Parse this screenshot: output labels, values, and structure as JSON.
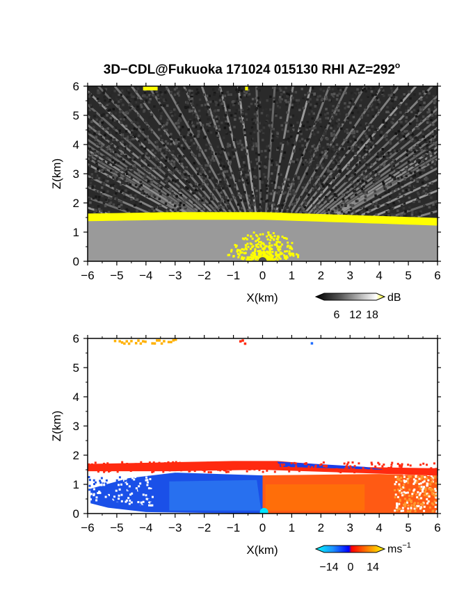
{
  "title": "3D−CDL@Fukuoka 171024 015130 RHI AZ=292",
  "title_sup": "o",
  "chart_data": [
    {
      "type": "heatmap",
      "quantity": "reflectivity",
      "xlabel": "X(km)",
      "ylabel": "Z(km)",
      "xlim": [
        -6,
        6
      ],
      "ylim": [
        0,
        6
      ],
      "xticks": [
        "−6",
        "−5",
        "−4",
        "−3",
        "−2",
        "−1",
        "0",
        "1",
        "2",
        "3",
        "4",
        "5",
        "6"
      ],
      "yticks": [
        "0",
        "1",
        "2",
        "3",
        "4",
        "5",
        "6"
      ],
      "background_noise_top_km": 6,
      "boundary_layer_top_km": [
        {
          "x": -6,
          "z": 1.6
        },
        {
          "x": -3,
          "z": 1.65
        },
        {
          "x": 0,
          "z": 1.65
        },
        {
          "x": 3,
          "z": 1.55
        },
        {
          "x": 6,
          "z": 1.45
        }
      ],
      "features": [
        {
          "label": "strong echo near aloft",
          "x": [
            -4.1,
            -3.6
          ],
          "z": [
            5.95,
            6.0
          ],
          "color": "#ffff00"
        },
        {
          "label": "strong echo near aloft",
          "x": [
            -0.6,
            -0.5
          ],
          "z": [
            5.95,
            6.0
          ],
          "color": "#ffff00"
        }
      ],
      "colorbar": {
        "unit": "dB",
        "ticks": [
          "6",
          "12",
          "18"
        ],
        "colors": [
          "#000000",
          "#404040",
          "#808080",
          "#c0c0c0",
          "#ffffff",
          "#ffff00"
        ]
      }
    },
    {
      "type": "heatmap",
      "quantity": "doppler velocity",
      "xlabel": "X(km)",
      "ylabel": "Z(km)",
      "xlim": [
        -6,
        6
      ],
      "ylim": [
        0,
        6
      ],
      "xticks": [
        "−6",
        "−5",
        "−4",
        "−3",
        "−2",
        "−1",
        "0",
        "1",
        "2",
        "3",
        "4",
        "5",
        "6"
      ],
      "yticks": [
        "0",
        "1",
        "2",
        "3",
        "4",
        "5",
        "6"
      ],
      "regions": [
        {
          "label": "approaching",
          "x": [
            -6,
            0
          ],
          "z": [
            0,
            1.45
          ],
          "color": "#1a50e8"
        },
        {
          "label": "receding",
          "x": [
            0,
            6
          ],
          "z": [
            0,
            1.45
          ],
          "color": "#ff5a14"
        },
        {
          "label": "layer top",
          "x": [
            -6,
            6
          ],
          "z": [
            1.45,
            1.7
          ],
          "color": "#ff2a10"
        }
      ],
      "colorbar": {
        "unit": "ms",
        "unit_sup": "−1",
        "ticks": [
          "−14",
          "0",
          "14"
        ],
        "colors": [
          "#00ffff",
          "#1e90ff",
          "#0000ff",
          "#ff0000",
          "#ff7f00",
          "#ffff00"
        ]
      }
    }
  ]
}
